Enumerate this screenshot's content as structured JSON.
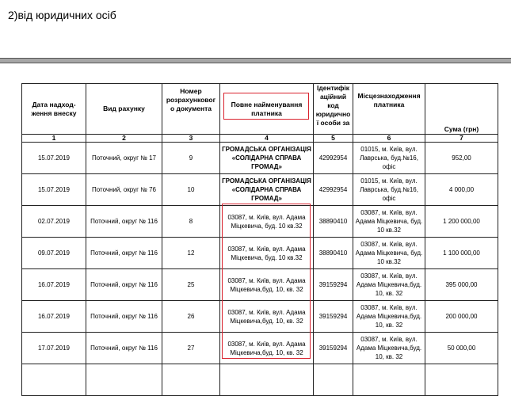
{
  "section_title": "2)від юридичних осіб",
  "table": {
    "headers": [
      "Дата надход-ження внеску",
      "Вид рахунку",
      "Номер розрахунковог о документа",
      "Повне найменування платника",
      "Ідентифік аційний код юридично ї особи за",
      "Місцезнаходження платника",
      "Сума (грн)"
    ],
    "column_numbers": [
      "1",
      "2",
      "3",
      "4",
      "5",
      "6",
      "7"
    ],
    "rows": [
      [
        "15.07.2019",
        "Поточний, округ № 17",
        "9",
        "ГРОМАДСЬКА ОРГАНІЗАЦІЯ «СОЛІДАРНА СПРАВА ГРОМАД»",
        "42992954",
        "01015, м. Київ, вул. Лаврська, буд.№16, офіс",
        "952,00"
      ],
      [
        "15.07.2019",
        "Поточний, округ № 76",
        "10",
        "ГРОМАДСЬКА ОРГАНІЗАЦІЯ «СОЛІДАРНА СПРАВА ГРОМАД»",
        "42992954",
        "01015, м. Київ, вул. Лаврська, буд.№16, офіс",
        "4 000,00"
      ],
      [
        "02.07.2019",
        "Поточний, округ № 116",
        "8",
        "03087, м. Київ, вул. Адама Міцкевича, буд. 10 кв.32",
        "38890410",
        "03087, м. Київ, вул. Адама Міцкевича, буд. 10 кв.32",
        "1 200 000,00"
      ],
      [
        "09.07.2019",
        "Поточний, округ № 116",
        "12",
        "03087, м. Київ, вул. Адама Міцкевича, буд. 10 кв.32",
        "38890410",
        "03087, м. Київ, вул. Адама Міцкевича, буд. 10 кв.32",
        "1 100 000,00"
      ],
      [
        "16.07.2019",
        "Поточний, округ № 116",
        "25",
        "03087, м. Київ, вул. Адама Міцкевича,буд. 10, кв. 32",
        "39159294",
        "03087, м. Київ, вул. Адама Міцкевича,буд. 10, кв. 32",
        "395 000,00"
      ],
      [
        "16.07.2019",
        "Поточний, округ № 116",
        "26",
        "03087, м. Київ, вул. Адама Міцкевича,буд. 10, кв. 32",
        "39159294",
        "03087, м. Київ, вул. Адама Міцкевича,буд. 10, кв. 32",
        "200 000,00"
      ],
      [
        "17.07.2019",
        "Поточний, округ № 116",
        "27",
        "03087, м. Київ, вул. Адама Міцкевича,буд. 10, кв. 32",
        "39159294",
        "03087, м. Київ, вул. Адама Міцкевича,буд. 10, кв. 32",
        "50 000,00"
      ]
    ]
  },
  "colors": {
    "highlight_box": "#d9232e",
    "separator_bar": "#a6a6a6"
  }
}
